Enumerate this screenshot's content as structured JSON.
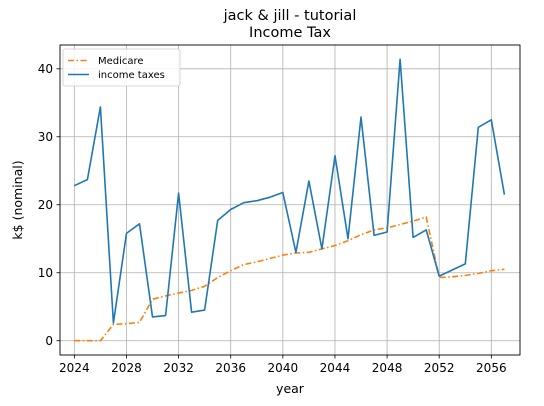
{
  "chart_data": {
    "type": "line",
    "title": "jack & jill - tutorial",
    "subtitle": "Income Tax",
    "xlabel": "year",
    "ylabel": "k$ (nominal)",
    "xlim": [
      2022.9,
      2058.2
    ],
    "ylim": [
      -2.1,
      43.5
    ],
    "xticks": [
      2024,
      2028,
      2032,
      2036,
      2040,
      2044,
      2048,
      2052,
      2056
    ],
    "yticks": [
      0,
      10,
      20,
      30,
      40
    ],
    "grid": true,
    "legend_position": "top-left",
    "series": [
      {
        "name": "Medicare",
        "color": "#ff7f0e",
        "style": "dash-dot",
        "x": [
          2024,
          2025,
          2026,
          2027,
          2028,
          2029,
          2030,
          2031,
          2032,
          2033,
          2034,
          2035,
          2036,
          2037,
          2038,
          2039,
          2040,
          2041,
          2042,
          2043,
          2044,
          2045,
          2046,
          2047,
          2048,
          2049,
          2050,
          2051,
          2052,
          2053,
          2054,
          2055,
          2056,
          2057
        ],
        "values": [
          0.0,
          0.0,
          0.0,
          2.4,
          2.5,
          2.7,
          6.1,
          6.6,
          7.0,
          7.4,
          8.0,
          9.3,
          10.3,
          11.2,
          11.6,
          12.1,
          12.6,
          12.9,
          13.0,
          13.5,
          14.0,
          14.7,
          15.6,
          16.3,
          16.6,
          17.1,
          17.6,
          18.2,
          9.3,
          9.4,
          9.6,
          9.9,
          10.3,
          10.5
        ]
      },
      {
        "name": "income taxes",
        "color": "#1f77b4",
        "style": "solid",
        "x": [
          2024,
          2025,
          2026,
          2027,
          2028,
          2029,
          2030,
          2031,
          2032,
          2033,
          2034,
          2035,
          2036,
          2037,
          2038,
          2039,
          2040,
          2041,
          2042,
          2043,
          2044,
          2045,
          2046,
          2047,
          2048,
          2049,
          2050,
          2051,
          2052,
          2053,
          2054,
          2055,
          2056,
          2057
        ],
        "values": [
          22.8,
          23.7,
          34.4,
          2.6,
          15.8,
          17.2,
          3.5,
          3.7,
          21.7,
          4.2,
          4.5,
          17.7,
          19.3,
          20.3,
          20.6,
          21.1,
          21.8,
          13.0,
          23.5,
          13.5,
          27.2,
          15.0,
          32.9,
          15.5,
          16.0,
          41.4,
          15.2,
          16.3,
          9.5,
          10.4,
          11.3,
          31.4,
          32.5,
          21.5
        ]
      }
    ]
  }
}
